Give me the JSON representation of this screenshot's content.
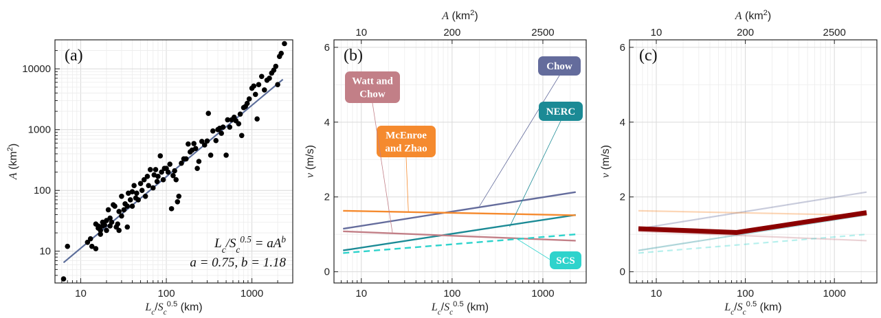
{
  "chart_data": [
    {
      "panel": "(a)",
      "type": "scatter",
      "xscale": "log",
      "yscale": "log",
      "xlim": [
        5,
        3000
      ],
      "ylim": [
        3,
        30000
      ],
      "xticks": [
        10,
        100,
        1000
      ],
      "yticks": [
        10,
        100,
        1000,
        10000
      ],
      "xlabel": "Lc/Sc0.5 (km)",
      "ylabel": "A (km²)",
      "equation": "Lc/Sc0.5 = aA^b",
      "params": "a = 0.75, b = 1.18",
      "fit_color": "#5b6d9a",
      "fit_line": [
        [
          6.3,
          6.5
        ],
        [
          2300,
          6700
        ]
      ],
      "points": [
        [
          6.3,
          3.5
        ],
        [
          7,
          12
        ],
        [
          12,
          14
        ],
        [
          13,
          16
        ],
        [
          13.5,
          12
        ],
        [
          15,
          11
        ],
        [
          15,
          28
        ],
        [
          16,
          26
        ],
        [
          16,
          24
        ],
        [
          17,
          22
        ],
        [
          17,
          19
        ],
        [
          18,
          26
        ],
        [
          18,
          30
        ],
        [
          19,
          27
        ],
        [
          20,
          32
        ],
        [
          20,
          22
        ],
        [
          21,
          48
        ],
        [
          22,
          26
        ],
        [
          22,
          35
        ],
        [
          23,
          30
        ],
        [
          24,
          58
        ],
        [
          25,
          55
        ],
        [
          26,
          25
        ],
        [
          27,
          28
        ],
        [
          28,
          45
        ],
        [
          28,
          22
        ],
        [
          30,
          80
        ],
        [
          30,
          38
        ],
        [
          32,
          48
        ],
        [
          33,
          60
        ],
        [
          35,
          55
        ],
        [
          35,
          25
        ],
        [
          36,
          90
        ],
        [
          38,
          70
        ],
        [
          40,
          95
        ],
        [
          40,
          55
        ],
        [
          42,
          120
        ],
        [
          44,
          75
        ],
        [
          45,
          90
        ],
        [
          47,
          70
        ],
        [
          50,
          130
        ],
        [
          52,
          100
        ],
        [
          55,
          150
        ],
        [
          57,
          80
        ],
        [
          60,
          170
        ],
        [
          62,
          120
        ],
        [
          65,
          220
        ],
        [
          70,
          110
        ],
        [
          72,
          180
        ],
        [
          75,
          220
        ],
        [
          78,
          140
        ],
        [
          80,
          170
        ],
        [
          85,
          370
        ],
        [
          88,
          200
        ],
        [
          92,
          150
        ],
        [
          95,
          230
        ],
        [
          100,
          230
        ],
        [
          105,
          200
        ],
        [
          110,
          270
        ],
        [
          115,
          50
        ],
        [
          120,
          175
        ],
        [
          125,
          210
        ],
        [
          130,
          150
        ],
        [
          135,
          65
        ],
        [
          140,
          80
        ],
        [
          150,
          280
        ],
        [
          160,
          330
        ],
        [
          170,
          330
        ],
        [
          180,
          580
        ],
        [
          190,
          430
        ],
        [
          200,
          460
        ],
        [
          210,
          590
        ],
        [
          220,
          490
        ],
        [
          230,
          230
        ],
        [
          240,
          300
        ],
        [
          260,
          640
        ],
        [
          280,
          560
        ],
        [
          300,
          650
        ],
        [
          310,
          1850
        ],
        [
          330,
          380
        ],
        [
          350,
          950
        ],
        [
          380,
          660
        ],
        [
          400,
          1000
        ],
        [
          420,
          1050
        ],
        [
          440,
          870
        ],
        [
          460,
          1100
        ],
        [
          500,
          380
        ],
        [
          520,
          1450
        ],
        [
          550,
          1100
        ],
        [
          580,
          1450
        ],
        [
          620,
          1600
        ],
        [
          650,
          1400
        ],
        [
          700,
          1250
        ],
        [
          730,
          1800
        ],
        [
          760,
          800
        ],
        [
          800,
          2300
        ],
        [
          840,
          2400
        ],
        [
          880,
          2700
        ],
        [
          930,
          3200
        ],
        [
          1000,
          4800
        ],
        [
          1050,
          5200
        ],
        [
          1100,
          3800
        ],
        [
          1150,
          1500
        ],
        [
          1200,
          5500
        ],
        [
          1300,
          7500
        ],
        [
          1400,
          4500
        ],
        [
          1500,
          6500
        ],
        [
          1600,
          7000
        ],
        [
          1700,
          8500
        ],
        [
          1800,
          9500
        ],
        [
          1900,
          11000
        ],
        [
          2000,
          5500
        ],
        [
          2100,
          16000
        ],
        [
          2200,
          18000
        ],
        [
          2400,
          26000
        ]
      ]
    },
    {
      "panel": "(b)",
      "type": "line",
      "xscale": "log",
      "xlim": [
        5,
        3000
      ],
      "ylim": [
        -0.3,
        6.2
      ],
      "xticks": [
        10,
        100,
        1000
      ],
      "yticks": [
        0,
        2,
        4,
        6
      ],
      "top_axis": {
        "label": "A (km²)",
        "ticks": [
          {
            "label": "10",
            "x": 10
          },
          {
            "label": "200",
            "x": 100
          },
          {
            "label": "2500",
            "x": 1000
          }
        ]
      },
      "xlabel": "Lc/Sc0.5 (km)",
      "ylabel": "v (m/s)",
      "series": [
        {
          "name": "Chow",
          "color": "#646c9c",
          "dashed": false,
          "points": [
            [
              6.3,
              1.15
            ],
            [
              2300,
              2.13
            ]
          ]
        },
        {
          "name": "NERC",
          "color": "#1b8a95",
          "dashed": false,
          "points": [
            [
              6.3,
              0.57
            ],
            [
              2300,
              1.52
            ]
          ]
        },
        {
          "name": "McEnroe and Zhao",
          "color": "#f58a2e",
          "dashed": false,
          "points": [
            [
              6.3,
              1.63
            ],
            [
              2300,
              1.51
            ]
          ]
        },
        {
          "name": "Watt and Chow",
          "color": "#c27f87",
          "dashed": false,
          "points": [
            [
              6.3,
              1.08
            ],
            [
              2300,
              0.83
            ]
          ]
        },
        {
          "name": "SCS",
          "color": "#2ed3cc",
          "dashed": true,
          "points": [
            [
              6.3,
              0.5
            ],
            [
              2300,
              1.0
            ]
          ]
        }
      ],
      "labels": [
        {
          "text": [
            "Chow"
          ],
          "color": "#646c9c",
          "box": [
            10000,
            0,
            0
          ],
          "anchor": [
            200,
            1.75
          ]
        },
        {
          "text": [
            "NERC"
          ],
          "color": "#1b8a95",
          "box": [
            0,
            0,
            0
          ],
          "anchor": [
            430,
            1.2
          ]
        },
        {
          "text": [
            "McEnroe",
            "and Zhao"
          ],
          "color": "#f58a2e",
          "box": [
            0,
            0,
            0
          ],
          "anchor": [
            33,
            1.6
          ]
        },
        {
          "text": [
            "Watt and",
            "Chow"
          ],
          "color": "#c27f87",
          "box": [
            0,
            0,
            0
          ],
          "anchor": [
            22,
            1.05
          ]
        },
        {
          "text": [
            "SCS"
          ],
          "color": "#2ed3cc",
          "box": [
            0,
            0,
            0
          ],
          "anchor": [
            500,
            0.9
          ]
        }
      ]
    },
    {
      "panel": "(c)",
      "type": "line",
      "xscale": "log",
      "xlim": [
        5,
        3000
      ],
      "ylim": [
        -0.3,
        6.2
      ],
      "xticks": [
        10,
        100,
        1000
      ],
      "yticks": [
        0,
        2,
        4,
        6
      ],
      "top_axis": {
        "label": "A (km²)",
        "ticks": [
          {
            "label": "10",
            "x": 10
          },
          {
            "label": "200",
            "x": 100
          },
          {
            "label": "2500",
            "x": 1000
          }
        ]
      },
      "xlabel": "Lc/Sc0.5 (km)",
      "ylabel": "v (m/s)",
      "highlight": {
        "color": "#8b0000",
        "points": [
          [
            6.3,
            1.15
          ],
          [
            80,
            1.05
          ],
          [
            2300,
            1.58
          ]
        ]
      }
    }
  ]
}
